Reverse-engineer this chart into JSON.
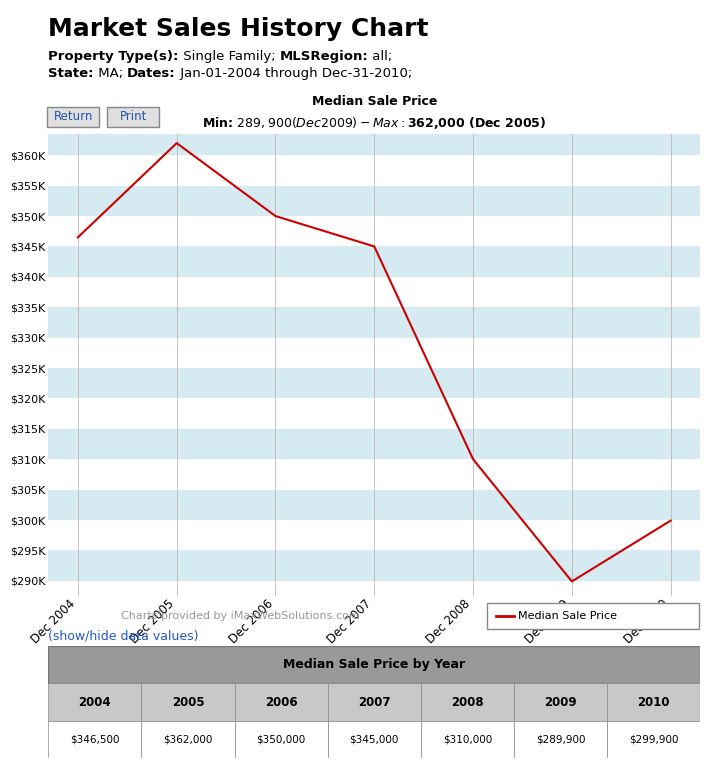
{
  "main_title": "Market Sales History Chart",
  "prop_bold1": "Property Type(s):",
  "prop_norm1": " Single Family; ",
  "prop_bold2": "MLSRegion:",
  "prop_norm2": " all;",
  "prop_bold3": "State:",
  "prop_norm3": " MA; ",
  "prop_bold4": "Dates:",
  "prop_norm4": " Jan-01-2004 through Dec-31-2010;",
  "chart_title_line1": "Median Sale Price",
  "chart_title_line2": "Min: $289,900 (Dec 2009) - Max: $362,000 (Dec 2005)",
  "x_labels": [
    "Dec 2004",
    "Dec 2005",
    "Dec 2006",
    "Dec 2007",
    "Dec 2008",
    "Dec 2009",
    "Dec 2010"
  ],
  "y_values": [
    346500,
    362000,
    350000,
    345000,
    310000,
    289900,
    299900
  ],
  "y_min": 287500,
  "y_max": 363500,
  "y_ticks": [
    290000,
    295000,
    300000,
    305000,
    310000,
    315000,
    320000,
    325000,
    330000,
    335000,
    340000,
    345000,
    350000,
    355000,
    360000
  ],
  "line_color": "#cc0000",
  "bg_color_light": "#d6eaf2",
  "bg_color_white": "#ffffff",
  "legend_label": "Median Sale Price",
  "footer_text": "Charts provided by iMaxWebSolutions.com",
  "show_hide_text": "(show/hide data values)",
  "table_title": "Median Sale Price by Year",
  "table_years": [
    "2004",
    "2005",
    "2006",
    "2007",
    "2008",
    "2009",
    "2010"
  ],
  "table_values": [
    "$346,500",
    "$362,000",
    "$350,000",
    "$345,000",
    "$310,000",
    "$289,900",
    "$299,900"
  ],
  "table_header_bg": "#999999",
  "table_year_bg": "#c8c8c8",
  "table_value_bg": "#ffffff",
  "button_return": "Return",
  "button_print": "Print"
}
